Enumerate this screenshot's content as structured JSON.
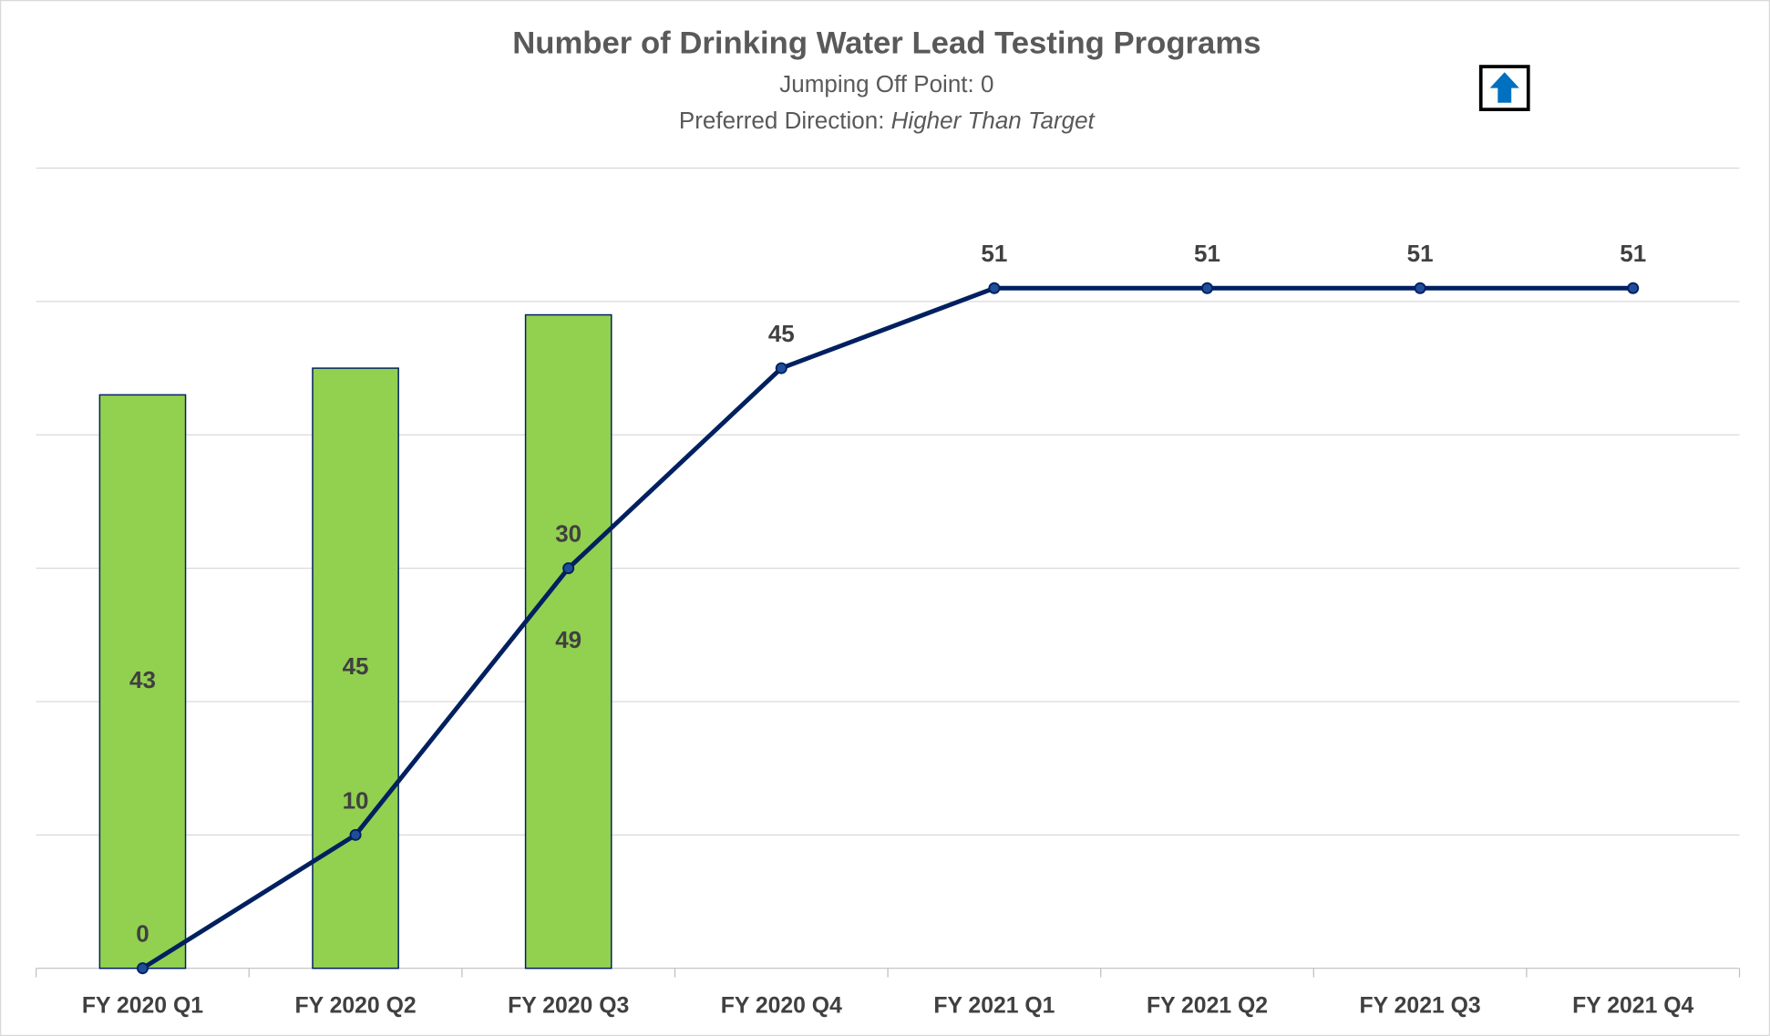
{
  "chart_data": {
    "type": "bar",
    "title": "Number of Drinking Water Lead Testing Programs",
    "subtitle": "Jumping Off Point: 0",
    "subtitle2_prefix": "Preferred Direction: ",
    "subtitle2_emphasis": "Higher Than Target",
    "categories": [
      "FY 2020 Q1",
      "FY 2020 Q2",
      "FY 2020 Q3",
      "FY 2020 Q4",
      "FY 2021 Q1",
      "FY 2021 Q2",
      "FY 2021 Q3",
      "FY 2021 Q4"
    ],
    "series": [
      {
        "type": "bar",
        "color": "#92d050",
        "values": [
          43,
          45,
          49,
          null,
          null,
          null,
          null,
          null
        ]
      },
      {
        "type": "line",
        "color": "#002060",
        "values": [
          0,
          10,
          30,
          45,
          51,
          51,
          51,
          51
        ]
      }
    ],
    "ylim": [
      0,
      60
    ],
    "yticks": [
      0,
      10,
      20,
      30,
      40,
      50,
      60
    ],
    "grid": true
  }
}
